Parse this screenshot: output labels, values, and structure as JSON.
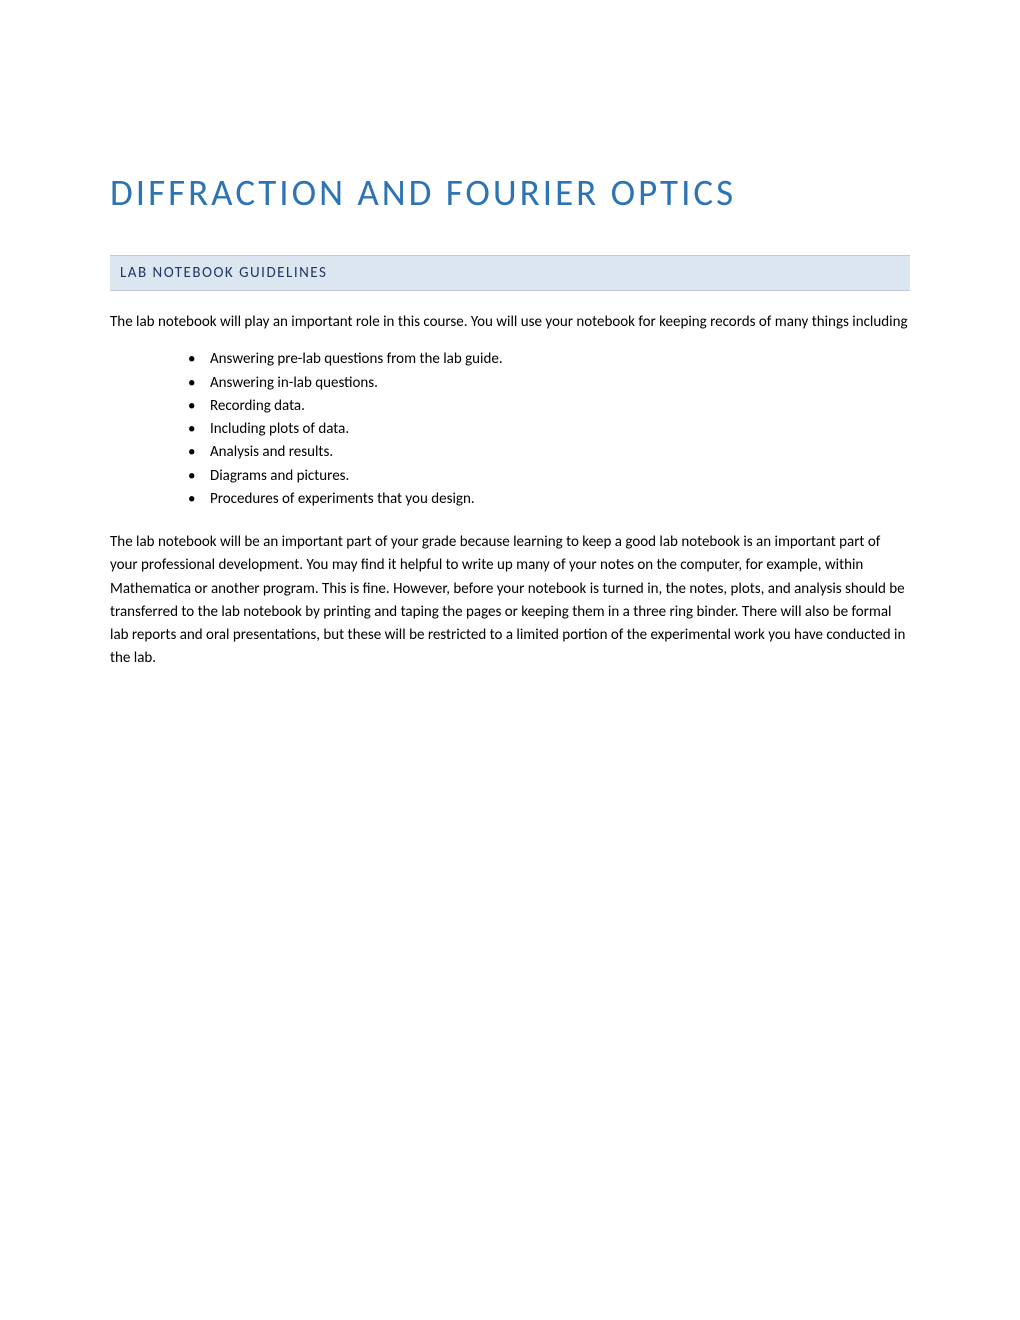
{
  "document": {
    "title": "DIFFRACTION AND FOURIER OPTICS",
    "section_header": "LAB NOTEBOOK GUIDELINES",
    "intro_paragraph": "The lab notebook will play an important role in this course.  You will use your notebook for keeping records of many things including",
    "bullets": [
      "Answering pre-lab questions from the lab guide.",
      "Answering in-lab questions.",
      "Recording data.",
      "Including plots of data.",
      "Analysis and results.",
      "Diagrams and pictures.",
      "Procedures of experiments that you design."
    ],
    "closing_paragraph": "The lab notebook will be an important part of your grade because learning to keep a good lab notebook is an important part of your professional development.  You may find it helpful to write up many of your notes on the computer, for example, within Mathematica or another program.  This is fine.  However, before your notebook is turned in, the notes, plots, and analysis should be transferred to the lab notebook by printing and taping the pages or keeping them in a three ring binder.  There will also be formal lab reports and oral presentations, but these will be restricted to a limited portion of the experimental work you have conducted in the lab."
  },
  "colors": {
    "title_color": "#2e74b5",
    "header_bg": "#dce6f1",
    "header_text": "#1f3864",
    "body_text": "#000000",
    "page_bg": "#ffffff"
  },
  "typography": {
    "title_fontsize": 37,
    "header_fontsize": 15,
    "body_fontsize": 15,
    "font_family": "Calibri"
  }
}
